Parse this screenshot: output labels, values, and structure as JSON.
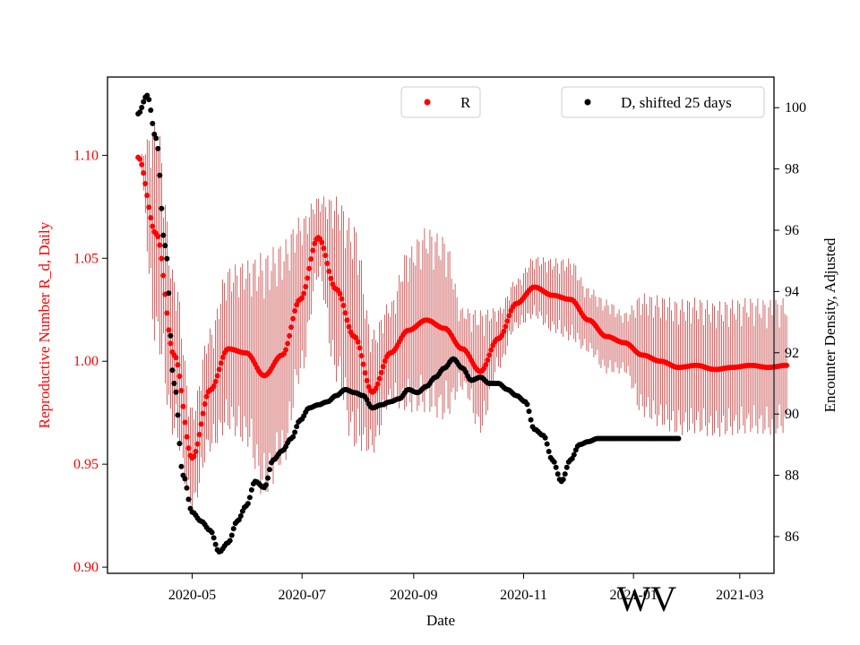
{
  "chart_data": {
    "type": "scatter",
    "x_label": "Date",
    "y_left_label": "Reproductive Number R_d, Daily",
    "y_right_label": "Encounter Density, Adjusted",
    "watermark": "WV",
    "x_range": [
      "2020-03-15",
      "2021-03-20"
    ],
    "x_ticks": [
      "2020-05",
      "2020-07",
      "2020-09",
      "2020-11",
      "2021-01",
      "2021-03"
    ],
    "x_tick_dates": [
      "2020-05-01",
      "2020-07-01",
      "2020-09-01",
      "2020-11-01",
      "2021-01-01",
      "2021-03-01"
    ],
    "y_left_range": [
      0.897,
      1.138
    ],
    "y_left_ticks": [
      "0.90",
      "0.95",
      "1.00",
      "1.05",
      "1.10"
    ],
    "y_left_tick_values": [
      0.9,
      0.95,
      1.0,
      1.05,
      1.1
    ],
    "y_right_range": [
      84.8,
      101.0
    ],
    "y_right_ticks": [
      "86",
      "88",
      "90",
      "92",
      "94",
      "96",
      "98",
      "100"
    ],
    "y_right_tick_values": [
      86,
      88,
      90,
      92,
      94,
      96,
      98,
      100
    ],
    "colors": {
      "R": "#ff0000",
      "R_error": "#b00000",
      "D": "#000000",
      "left_axis": "#ff0000"
    },
    "series": [
      {
        "name": "R",
        "axis": "left",
        "start_date": "2020-04-01",
        "step_days": 10,
        "values": [
          1.099,
          1.062,
          1.003,
          0.953,
          0.986,
          1.006,
          1.004,
          0.993,
          1.003,
          1.03,
          1.06,
          1.035,
          1.012,
          0.985,
          1.004,
          1.015,
          1.02,
          1.016,
          1.006,
          0.995,
          1.011,
          1.028,
          1.036,
          1.032,
          1.03,
          1.02,
          1.012,
          1.009,
          1.003,
          1.0,
          0.997,
          0.998,
          0.996,
          0.997,
          0.998,
          0.997,
          0.998
        ],
        "errors": [
          0.0,
          0.055,
          0.04,
          0.025,
          0.03,
          0.04,
          0.045,
          0.06,
          0.055,
          0.04,
          0.02,
          0.045,
          0.055,
          0.03,
          0.025,
          0.04,
          0.045,
          0.045,
          0.02,
          0.03,
          0.015,
          0.012,
          0.015,
          0.018,
          0.02,
          0.016,
          0.018,
          0.015,
          0.03,
          0.032,
          0.033,
          0.033,
          0.033,
          0.033,
          0.033,
          0.033,
          0.033
        ]
      },
      {
        "name": "D, shifted 25 days",
        "axis": "right",
        "start_date": "2020-04-01",
        "step_days": 5,
        "values": [
          99.8,
          100.4,
          99.0,
          95.5,
          91.0,
          88.0,
          86.8,
          86.5,
          86.2,
          85.5,
          85.8,
          86.5,
          87.0,
          87.8,
          87.6,
          88.5,
          88.8,
          89.2,
          89.8,
          90.2,
          90.3,
          90.4,
          90.6,
          90.8,
          90.7,
          90.6,
          90.2,
          90.3,
          90.4,
          90.5,
          90.8,
          90.7,
          90.9,
          91.2,
          91.5,
          91.8,
          91.5,
          91.1,
          91.2,
          91.0,
          91.0,
          90.8,
          90.6,
          90.4,
          89.5,
          89.3,
          88.5,
          87.8,
          88.5,
          89.0,
          89.1,
          89.2,
          89.2,
          89.2,
          89.2,
          89.2,
          89.2,
          89.2,
          89.2,
          89.2,
          89.2
        ]
      }
    ],
    "legends": [
      {
        "label": "R",
        "position": "top-center"
      },
      {
        "label": "D, shifted 25 days",
        "position": "top-right"
      }
    ]
  }
}
